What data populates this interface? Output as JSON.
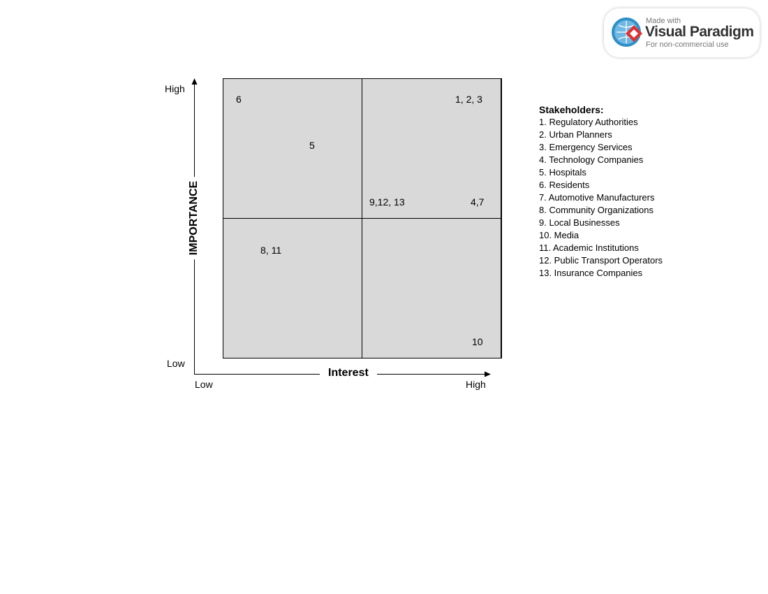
{
  "matrix": {
    "y_axis": {
      "title": "IMPORTANCE",
      "high": "High",
      "low": "Low"
    },
    "x_axis": {
      "title": "Interest",
      "high": "High",
      "low": "Low"
    },
    "points": {
      "p6": "6",
      "p5": "5",
      "p123": "1, 2, 3",
      "p91213": "9,12, 13",
      "p47": "4,7",
      "p811": "8, 11",
      "p10": "10"
    },
    "colors": {
      "quadrant_fill": "#d9d9d9",
      "border": "#000000"
    }
  },
  "legend": {
    "title": "Stakeholders:",
    "items": [
      "1. Regulatory Authorities",
      "2. Urban Planners",
      "3. Emergency Services",
      "4. Technology Companies",
      "5. Hospitals",
      "6. Residents",
      "7. Automotive Manufacturers",
      "8. Community Organizations",
      "9. Local Businesses",
      "10. Media",
      "11. Academic Institutions",
      "12. Public Transport Operators",
      "13. Insurance Companies"
    ]
  },
  "watermark": {
    "made_with": "Made with",
    "brand": "Visual Paradigm",
    "note": "For non-commercial use",
    "icon": "visual-paradigm-logo"
  }
}
